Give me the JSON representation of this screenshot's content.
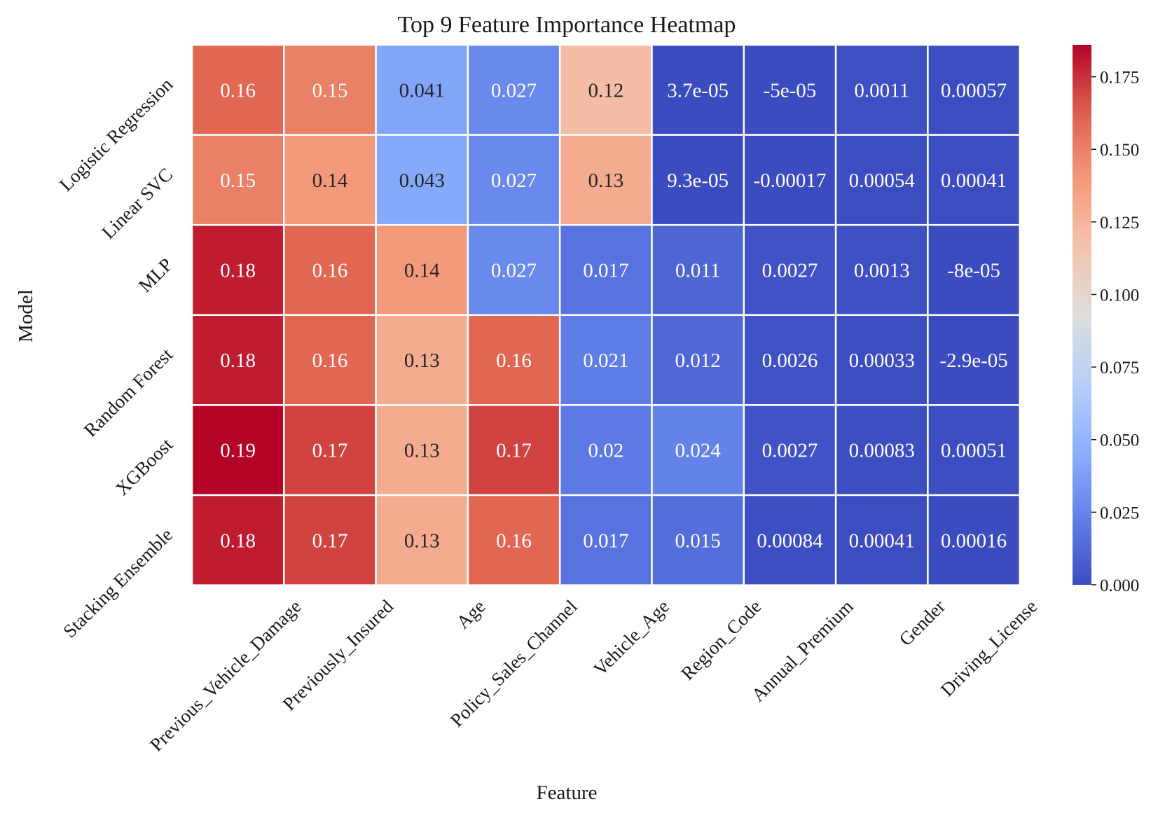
{
  "chart_data": {
    "type": "heatmap",
    "title": "Top 9 Feature Importance Heatmap",
    "xlabel": "Feature",
    "ylabel": "Model",
    "colormap": "coolwarm",
    "vmin": 0.0,
    "vmax": 0.186,
    "colorbar_ticks": [
      "0.000",
      "0.025",
      "0.050",
      "0.075",
      "0.100",
      "0.125",
      "0.150",
      "0.175"
    ],
    "x_categories": [
      "Previous_Vehicle_Damage",
      "Previously_Insured",
      "Age",
      "Policy_Sales_Channel",
      "Vehicle_Age",
      "Region_Code",
      "Annual_Premium",
      "Gender",
      "Driving_License"
    ],
    "y_categories": [
      "Logistic Regression",
      "Linear SVC",
      "MLP",
      "Random Forest",
      "XGBoost",
      "Stacking Ensemble"
    ],
    "values": [
      [
        0.16,
        0.15,
        0.041,
        0.027,
        0.12,
        3.7e-05,
        -5e-05,
        0.0011,
        0.00057
      ],
      [
        0.15,
        0.14,
        0.043,
        0.027,
        0.13,
        9.3e-05,
        -0.00017,
        0.00054,
        0.00041
      ],
      [
        0.18,
        0.16,
        0.14,
        0.027,
        0.017,
        0.011,
        0.0027,
        0.0013,
        -8e-05
      ],
      [
        0.18,
        0.16,
        0.13,
        0.16,
        0.021,
        0.012,
        0.0026,
        0.00033,
        -2.9e-05
      ],
      [
        0.19,
        0.17,
        0.13,
        0.17,
        0.02,
        0.024,
        0.0027,
        0.00083,
        0.00051
      ],
      [
        0.18,
        0.17,
        0.13,
        0.16,
        0.017,
        0.015,
        0.00084,
        0.00041,
        0.00016
      ]
    ],
    "cell_labels": [
      [
        "0.16",
        "0.15",
        "0.041",
        "0.027",
        "0.12",
        "3.7e-05",
        "-5e-05",
        "0.0011",
        "0.00057"
      ],
      [
        "0.15",
        "0.14",
        "0.043",
        "0.027",
        "0.13",
        "9.3e-05",
        "-0.00017",
        "0.00054",
        "0.00041"
      ],
      [
        "0.18",
        "0.16",
        "0.14",
        "0.027",
        "0.017",
        "0.011",
        "0.0027",
        "0.0013",
        "-8e-05"
      ],
      [
        "0.18",
        "0.16",
        "0.13",
        "0.16",
        "0.021",
        "0.012",
        "0.0026",
        "0.00033",
        "-2.9e-05"
      ],
      [
        "0.19",
        "0.17",
        "0.13",
        "0.17",
        "0.02",
        "0.024",
        "0.0027",
        "0.00083",
        "0.00051"
      ],
      [
        "0.18",
        "0.17",
        "0.13",
        "0.16",
        "0.017",
        "0.015",
        "0.00084",
        "0.00041",
        "0.00016"
      ]
    ]
  }
}
